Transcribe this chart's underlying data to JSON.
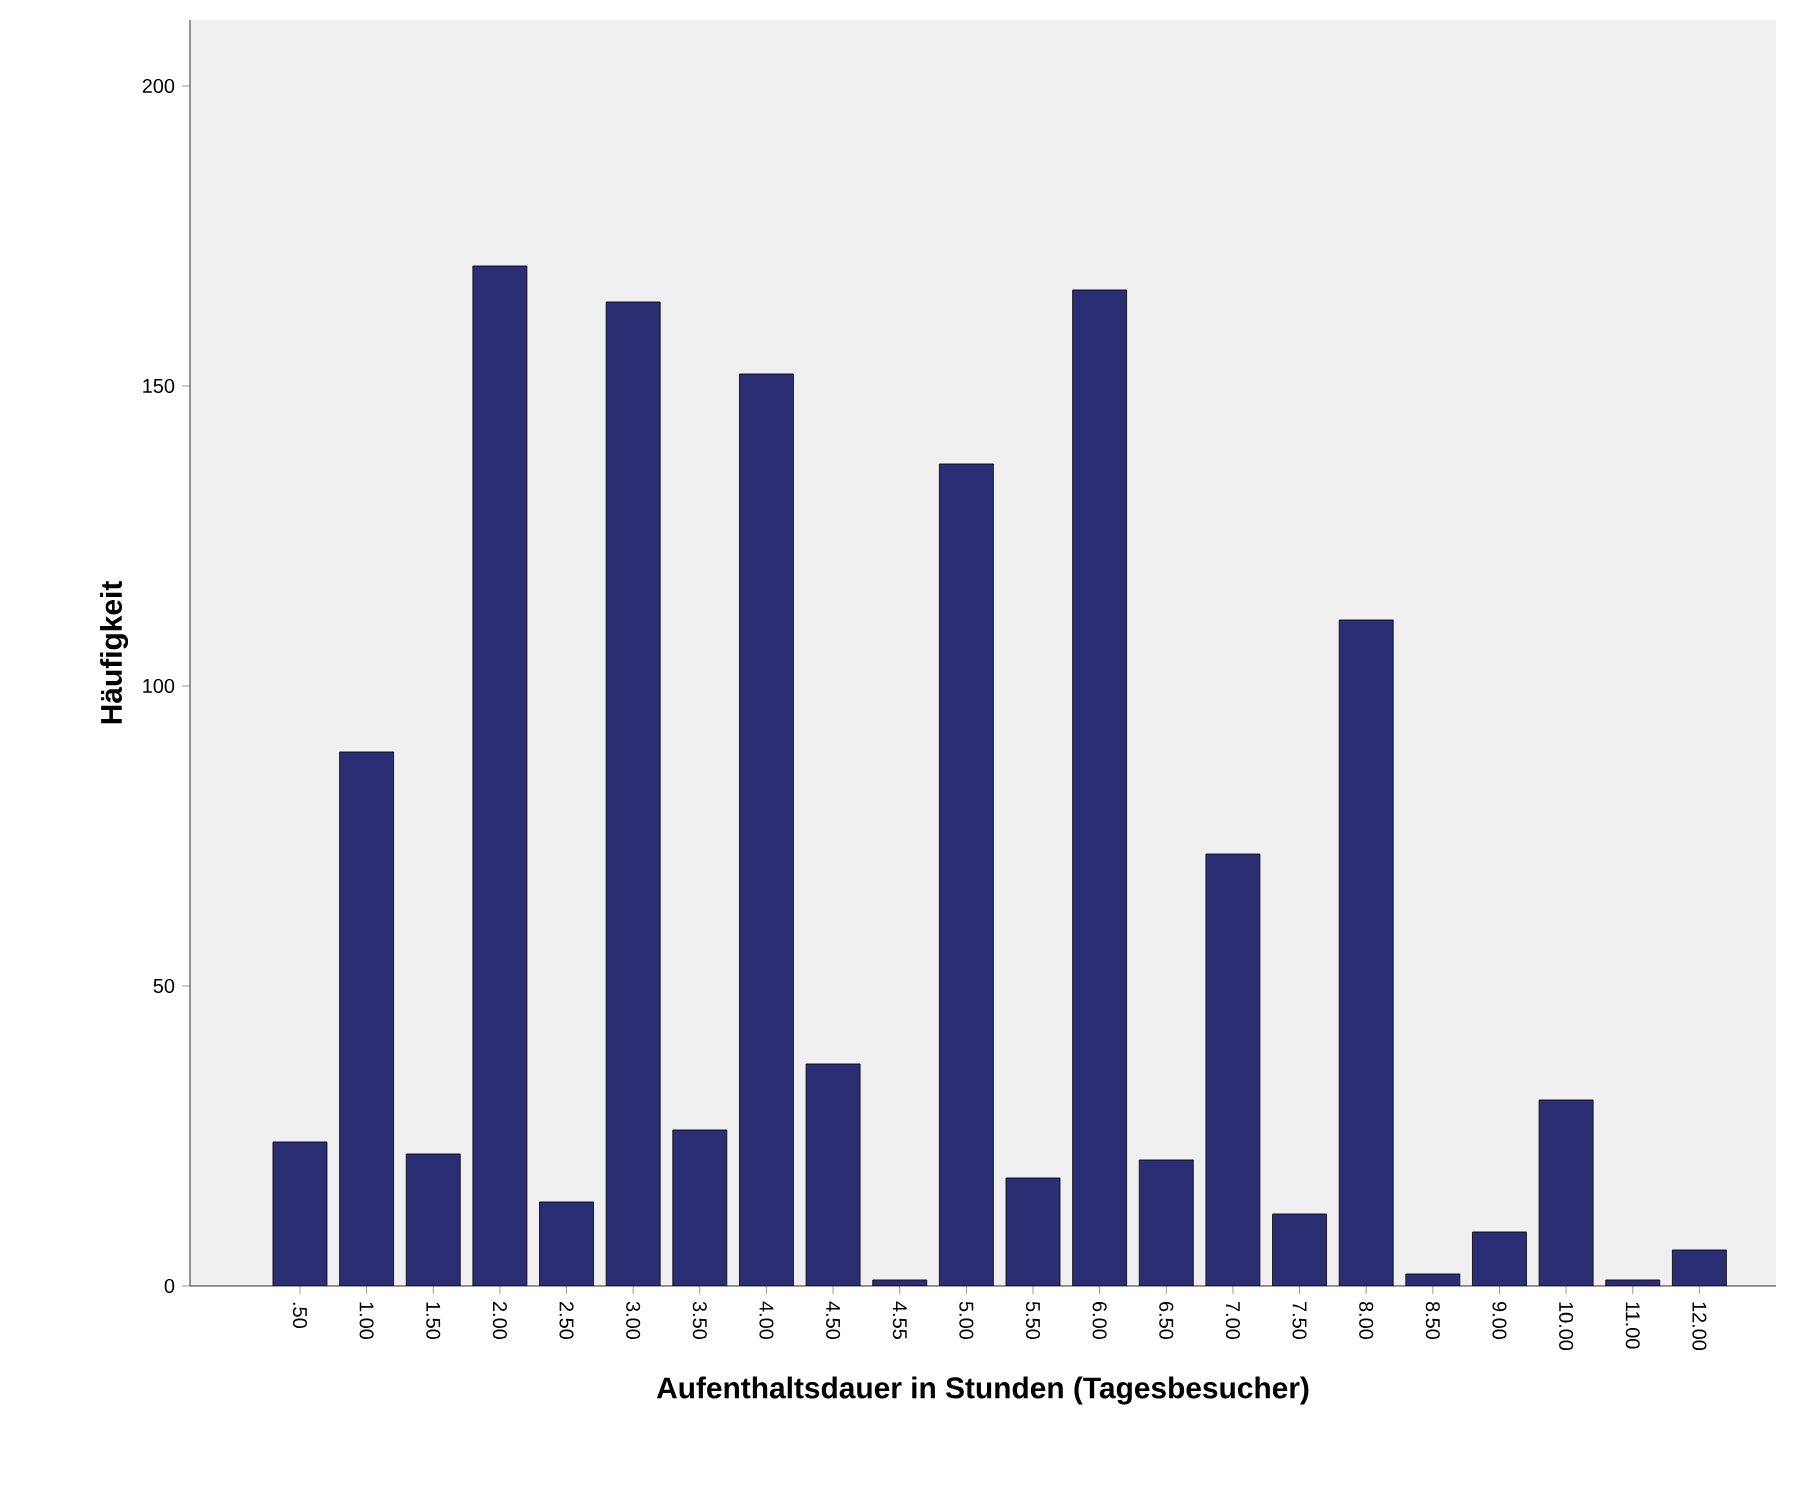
{
  "chart_data": {
    "type": "bar",
    "xlabel": "Aufenthaltsdauer in Stunden (Tagesbesucher)",
    "ylabel": "Häufigkeit",
    "categories": [
      ".50",
      "1.00",
      "1.50",
      "2.00",
      "2.50",
      "3.00",
      "3.50",
      "4.00",
      "4.50",
      "4.55",
      "5.00",
      "5.50",
      "6.00",
      "6.50",
      "7.00",
      "7.50",
      "8.00",
      "8.50",
      "9.00",
      "10.00",
      "11.00",
      "12.00"
    ],
    "values": [
      24,
      89,
      22,
      170,
      14,
      164,
      26,
      152,
      37,
      1,
      137,
      18,
      166,
      21,
      72,
      12,
      111,
      2,
      9,
      31,
      1,
      6
    ],
    "color": "#2b2e73",
    "ylim": [
      0,
      211
    ],
    "yticks": [
      0,
      50,
      100,
      150,
      200
    ],
    "grid": false
  }
}
